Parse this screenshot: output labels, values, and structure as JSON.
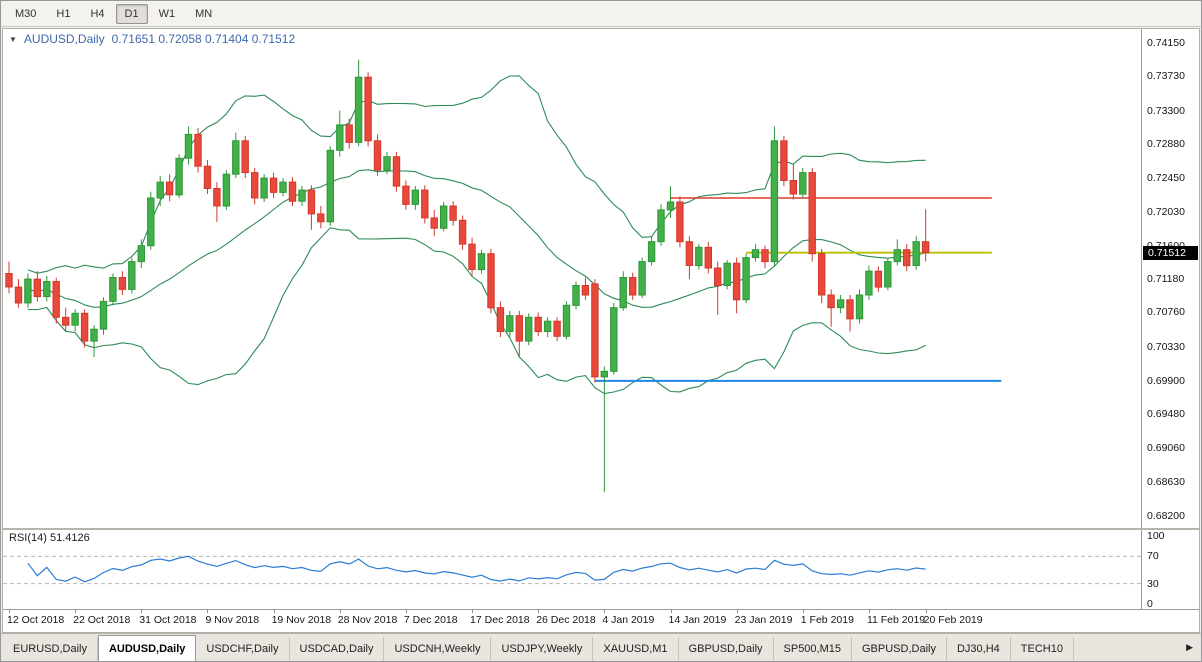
{
  "toolbar": {
    "timeframes": [
      {
        "label": "M30",
        "active": false
      },
      {
        "label": "H1",
        "active": false
      },
      {
        "label": "H4",
        "active": false
      },
      {
        "label": "D1",
        "active": true
      },
      {
        "label": "W1",
        "active": false
      },
      {
        "label": "MN",
        "active": false
      }
    ]
  },
  "chart": {
    "header": {
      "collapse_icon": "▼",
      "title": "AUDUSD,Daily",
      "ohlc": "0.71651 0.72058 0.71404 0.71512"
    }
  },
  "chart_data": {
    "type": "candlestick",
    "symbol": "AUDUSD",
    "timeframe": "Daily",
    "last_bar": {
      "open": "0.71651",
      "high": "0.72058",
      "low": "0.71404",
      "close": "0.71512"
    },
    "price_axis": {
      "min": 0.682,
      "max": 0.7415,
      "current_price": "0.71512",
      "ticks": [
        "0.74150",
        "0.73730",
        "0.73300",
        "0.72880",
        "0.72450",
        "0.72030",
        "0.71600",
        "0.71180",
        "0.70760",
        "0.70330",
        "0.69900",
        "0.69480",
        "0.69060",
        "0.68630",
        "0.68200"
      ]
    },
    "x_axis": {
      "labels": [
        {
          "text": "12 Oct 2018",
          "index": 0
        },
        {
          "text": "22 Oct 2018",
          "index": 7
        },
        {
          "text": "31 Oct 2018",
          "index": 14
        },
        {
          "text": "9 Nov 2018",
          "index": 21
        },
        {
          "text": "19 Nov 2018",
          "index": 28
        },
        {
          "text": "28 Nov 2018",
          "index": 35
        },
        {
          "text": "7 Dec 2018",
          "index": 42
        },
        {
          "text": "17 Dec 2018",
          "index": 49
        },
        {
          "text": "26 Dec 2018",
          "index": 56
        },
        {
          "text": "4 Jan 2019",
          "index": 63
        },
        {
          "text": "14 Jan 2019",
          "index": 70
        },
        {
          "text": "23 Jan 2019",
          "index": 77
        },
        {
          "text": "1 Feb 2019",
          "index": 84
        },
        {
          "text": "11 Feb 2019",
          "index": 91
        },
        {
          "text": "20 Feb 2019",
          "index": 97
        }
      ]
    },
    "colors": {
      "bull": "#41b049",
      "bull_stroke": "#2f9638",
      "bear": "#e8493a",
      "bear_stroke": "#cf3a2c",
      "background": "#ffffff"
    },
    "candles": [
      [
        0.7125,
        0.714,
        0.71,
        0.7108
      ],
      [
        0.7108,
        0.7118,
        0.7082,
        0.7088
      ],
      [
        0.7088,
        0.7125,
        0.7082,
        0.7118
      ],
      [
        0.7118,
        0.7128,
        0.709,
        0.7096
      ],
      [
        0.7096,
        0.7122,
        0.709,
        0.7115
      ],
      [
        0.7115,
        0.712,
        0.7062,
        0.707
      ],
      [
        0.707,
        0.7082,
        0.7052,
        0.706
      ],
      [
        0.706,
        0.708,
        0.7052,
        0.7075
      ],
      [
        0.7075,
        0.708,
        0.7032,
        0.704
      ],
      [
        0.704,
        0.706,
        0.702,
        0.7055
      ],
      [
        0.7055,
        0.7095,
        0.7048,
        0.709
      ],
      [
        0.709,
        0.7125,
        0.7085,
        0.712
      ],
      [
        0.712,
        0.7128,
        0.7098,
        0.7105
      ],
      [
        0.7105,
        0.7145,
        0.71,
        0.714
      ],
      [
        0.714,
        0.7168,
        0.7132,
        0.716
      ],
      [
        0.716,
        0.7228,
        0.7155,
        0.722
      ],
      [
        0.722,
        0.7248,
        0.721,
        0.724
      ],
      [
        0.724,
        0.725,
        0.7216,
        0.7224
      ],
      [
        0.7224,
        0.7275,
        0.722,
        0.727
      ],
      [
        0.727,
        0.731,
        0.7262,
        0.73
      ],
      [
        0.73,
        0.7308,
        0.7252,
        0.726
      ],
      [
        0.726,
        0.7268,
        0.7225,
        0.7232
      ],
      [
        0.7232,
        0.724,
        0.719,
        0.721
      ],
      [
        0.721,
        0.7255,
        0.7205,
        0.725
      ],
      [
        0.725,
        0.7302,
        0.7245,
        0.7292
      ],
      [
        0.7292,
        0.7298,
        0.7245,
        0.7252
      ],
      [
        0.7252,
        0.7258,
        0.7212,
        0.722
      ],
      [
        0.722,
        0.725,
        0.7215,
        0.7245
      ],
      [
        0.7245,
        0.7252,
        0.722,
        0.7227
      ],
      [
        0.7227,
        0.7245,
        0.7222,
        0.724
      ],
      [
        0.724,
        0.7246,
        0.721,
        0.7216
      ],
      [
        0.7216,
        0.7235,
        0.721,
        0.723
      ],
      [
        0.723,
        0.7236,
        0.718,
        0.72
      ],
      [
        0.72,
        0.721,
        0.7182,
        0.719
      ],
      [
        0.719,
        0.7285,
        0.7185,
        0.728
      ],
      [
        0.728,
        0.733,
        0.7272,
        0.7312
      ],
      [
        0.7312,
        0.732,
        0.7282,
        0.729
      ],
      [
        0.729,
        0.7394,
        0.7285,
        0.7372
      ],
      [
        0.7372,
        0.7378,
        0.7285,
        0.7292
      ],
      [
        0.7292,
        0.73,
        0.7248,
        0.7255
      ],
      [
        0.7255,
        0.7278,
        0.725,
        0.7272
      ],
      [
        0.7272,
        0.7278,
        0.7228,
        0.7235
      ],
      [
        0.7235,
        0.7242,
        0.7205,
        0.7212
      ],
      [
        0.7212,
        0.7235,
        0.7205,
        0.723
      ],
      [
        0.723,
        0.7236,
        0.7188,
        0.7195
      ],
      [
        0.7195,
        0.7205,
        0.7172,
        0.7182
      ],
      [
        0.7182,
        0.7215,
        0.7178,
        0.721
      ],
      [
        0.721,
        0.7216,
        0.7185,
        0.7192
      ],
      [
        0.7192,
        0.7198,
        0.7155,
        0.7162
      ],
      [
        0.7162,
        0.717,
        0.7122,
        0.713
      ],
      [
        0.713,
        0.7155,
        0.7125,
        0.715
      ],
      [
        0.715,
        0.7156,
        0.7075,
        0.7082
      ],
      [
        0.7082,
        0.709,
        0.7045,
        0.7052
      ],
      [
        0.7052,
        0.7078,
        0.7045,
        0.7072
      ],
      [
        0.7072,
        0.7078,
        0.702,
        0.704
      ],
      [
        0.704,
        0.7075,
        0.7035,
        0.707
      ],
      [
        0.707,
        0.7076,
        0.7046,
        0.7052
      ],
      [
        0.7052,
        0.707,
        0.7045,
        0.7065
      ],
      [
        0.7065,
        0.707,
        0.704,
        0.7046
      ],
      [
        0.7046,
        0.709,
        0.7042,
        0.7085
      ],
      [
        0.7085,
        0.7115,
        0.708,
        0.711
      ],
      [
        0.711,
        0.712,
        0.7092,
        0.7098
      ],
      [
        0.7112,
        0.7118,
        0.6988,
        0.6995
      ],
      [
        0.6995,
        0.7008,
        0.685,
        0.7002
      ],
      [
        0.7002,
        0.7088,
        0.6998,
        0.7082
      ],
      [
        0.7082,
        0.7128,
        0.7078,
        0.712
      ],
      [
        0.712,
        0.7126,
        0.7092,
        0.7098
      ],
      [
        0.7098,
        0.7145,
        0.7094,
        0.714
      ],
      [
        0.714,
        0.7172,
        0.7135,
        0.7165
      ],
      [
        0.7165,
        0.7212,
        0.716,
        0.7205
      ],
      [
        0.7205,
        0.7235,
        0.7195,
        0.7215
      ],
      [
        0.7215,
        0.7222,
        0.7158,
        0.7165
      ],
      [
        0.7165,
        0.7172,
        0.7118,
        0.7135
      ],
      [
        0.7135,
        0.7162,
        0.713,
        0.7158
      ],
      [
        0.7158,
        0.7165,
        0.7125,
        0.7132
      ],
      [
        0.7132,
        0.714,
        0.7073,
        0.711
      ],
      [
        0.711,
        0.7142,
        0.7105,
        0.7138
      ],
      [
        0.7138,
        0.7145,
        0.7075,
        0.7092
      ],
      [
        0.7092,
        0.715,
        0.7088,
        0.7145
      ],
      [
        0.7145,
        0.7162,
        0.714,
        0.7155
      ],
      [
        0.7155,
        0.716,
        0.7132,
        0.714
      ],
      [
        0.714,
        0.731,
        0.7135,
        0.7292
      ],
      [
        0.7292,
        0.7298,
        0.7235,
        0.7242
      ],
      [
        0.7242,
        0.7262,
        0.7218,
        0.7225
      ],
      [
        0.7225,
        0.7258,
        0.722,
        0.7252
      ],
      [
        0.7252,
        0.7258,
        0.714,
        0.715
      ],
      [
        0.715,
        0.7156,
        0.7088,
        0.7098
      ],
      [
        0.7098,
        0.7105,
        0.7058,
        0.7082
      ],
      [
        0.7082,
        0.7098,
        0.7075,
        0.7092
      ],
      [
        0.7092,
        0.7098,
        0.7052,
        0.7068
      ],
      [
        0.7068,
        0.7105,
        0.7062,
        0.7098
      ],
      [
        0.7098,
        0.7135,
        0.7092,
        0.7128
      ],
      [
        0.7128,
        0.7134,
        0.7102,
        0.7108
      ],
      [
        0.7108,
        0.7145,
        0.7104,
        0.714
      ],
      [
        0.714,
        0.7168,
        0.7135,
        0.7155
      ],
      [
        0.7155,
        0.7162,
        0.7128,
        0.7135
      ],
      [
        0.7135,
        0.7172,
        0.713,
        0.7165
      ],
      [
        0.71651,
        0.72058,
        0.71404,
        0.71512
      ]
    ],
    "indicators": {
      "bollinger": {
        "period": 20,
        "deviation": 2,
        "color": "#2e8b57"
      },
      "rsi": {
        "display": "RSI(14) 51.4126",
        "period": 14,
        "value": "51.4126",
        "color": "#2b7cd3",
        "levels": [
          70,
          30
        ],
        "range": [
          0,
          100
        ],
        "ticks": [
          "100",
          "70",
          "30",
          "0"
        ]
      }
    },
    "objects": {
      "hlines": [
        {
          "name": "resistance-line-red",
          "color": "#e03a2f",
          "width": 1.5,
          "price": 0.722,
          "from": 70,
          "to": 104
        },
        {
          "name": "current-price-line-yellow",
          "color": "#bcbe00",
          "width": 1.8,
          "price": 0.71512,
          "from": 78,
          "to": 104
        },
        {
          "name": "support-line-blue",
          "color": "#1e88e5",
          "width": 2,
          "price": 0.699,
          "from": 62,
          "to": 105
        }
      ]
    }
  },
  "tabs": {
    "scroll_right_icon": "▶",
    "items": [
      {
        "label": "EURUSD,Daily",
        "active": false
      },
      {
        "label": "AUDUSD,Daily",
        "active": true
      },
      {
        "label": "USDCHF,Daily",
        "active": false
      },
      {
        "label": "USDCAD,Daily",
        "active": false
      },
      {
        "label": "USDCNH,Weekly",
        "active": false
      },
      {
        "label": "USDJPY,Weekly",
        "active": false
      },
      {
        "label": "XAUUSD,M1",
        "active": false
      },
      {
        "label": "GBPUSD,Daily",
        "active": false
      },
      {
        "label": "SP500,M15",
        "active": false
      },
      {
        "label": "GBPUSD,Daily",
        "active": false
      },
      {
        "label": "DJ30,H4",
        "active": false
      },
      {
        "label": "TECH10",
        "active": false
      }
    ]
  }
}
